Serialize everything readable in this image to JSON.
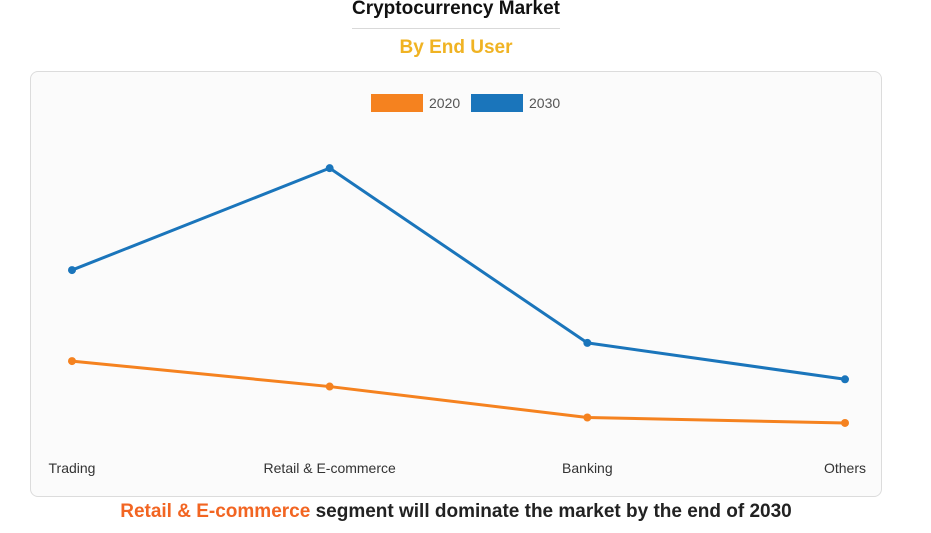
{
  "header": {
    "title": "Cryptocurrency Market",
    "subtitle": "By End User"
  },
  "footer": {
    "highlight": "Retail & E-commerce",
    "rest": " segment will dominate the market by the end of 2030"
  },
  "chart_data": {
    "type": "line",
    "categories": [
      "Trading",
      "Retail & E-commerce",
      "Banking",
      "Others"
    ],
    "series": [
      {
        "name": "2020",
        "color": "#f5821f",
        "values": [
          28,
          21,
          12.5,
          11
        ]
      },
      {
        "name": "2030",
        "color": "#1a75bb",
        "values": [
          53,
          81,
          33,
          23
        ]
      }
    ],
    "legend_position": "top-center",
    "ylim": [
      0,
      100
    ],
    "grid": false
  }
}
